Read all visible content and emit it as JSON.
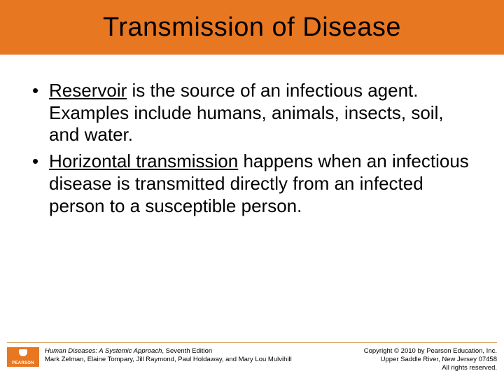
{
  "colors": {
    "title_bar_bg": "#e87722",
    "rule": "#d9a05b",
    "logo_bg": "#e87722",
    "logo_fg": "#ffffff",
    "text": "#000000",
    "slide_bg": "#ffffff"
  },
  "title": "Transmission of Disease",
  "bullets": [
    {
      "underlined": "Reservoir",
      "rest": " is the source of an infectious agent.  Examples include humans, animals, insects, soil, and water."
    },
    {
      "underlined": "Horizontal transmission",
      "rest": " happens when an infectious disease is transmitted directly from an infected person to a susceptible person."
    }
  ],
  "footer": {
    "logo_text": "PEARSON",
    "book_title": "Human Diseases: A Systemic Approach",
    "edition": ", Seventh Edition",
    "authors": "Mark Zelman, Elaine Tompary, Jill Raymond, Paul Holdaway, and Mary Lou Mulvihill",
    "copyright_line1": "Copyright © 2010 by Pearson Education, Inc.",
    "copyright_line2": "Upper Saddle River, New Jersey 07458",
    "copyright_line3": "All rights reserved."
  }
}
